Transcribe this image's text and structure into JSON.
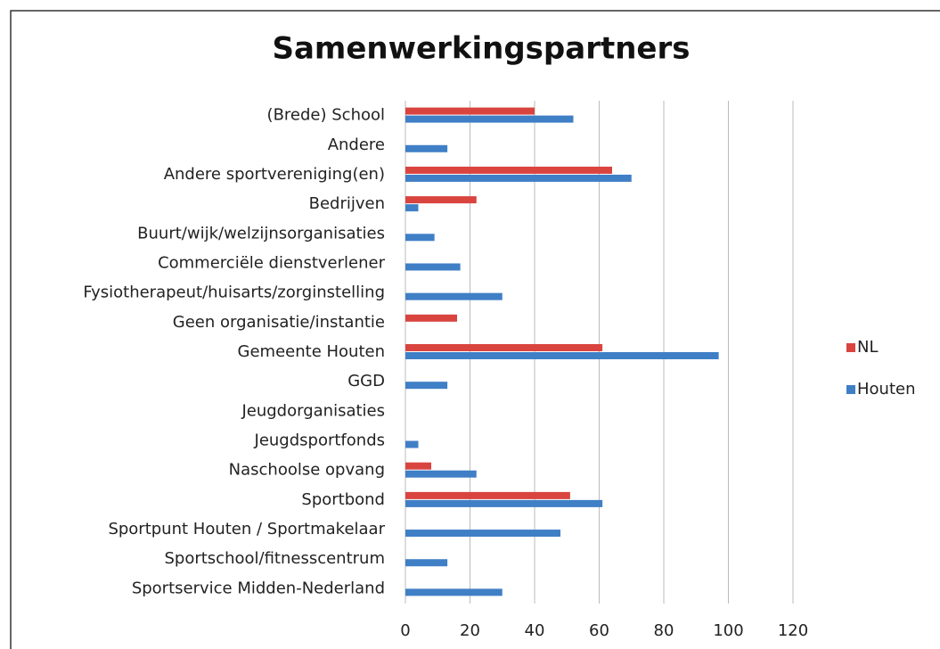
{
  "chart_data": {
    "type": "barh",
    "title": "Samenwerkingspartners",
    "categories": [
      "(Brede) School",
      "Andere",
      "Andere sportvereniging(en)",
      "Bedrijven",
      "Buurt/wijk/welzijnsorganisaties",
      "Commerciële dienstverlener",
      "Fysiotherapeut/huisarts/zorginstelling",
      "Geen organisatie/instantie",
      "Gemeente Houten",
      "GGD",
      "Jeugdorganisaties",
      "Jeugdsportfonds",
      "Naschoolse opvang",
      "Sportbond",
      "Sportpunt Houten / Sportmakelaar",
      "Sportschool/fitnesscentrum",
      "Sportservice Midden-Nederland"
    ],
    "series": [
      {
        "name": "NL",
        "color": "#d9443f",
        "values": [
          40,
          0,
          64,
          22,
          0,
          0,
          0,
          16,
          61,
          0,
          0,
          0,
          8,
          51,
          0,
          0,
          0
        ]
      },
      {
        "name": "Houten",
        "color": "#3f7fc6",
        "values": [
          52,
          13,
          70,
          4,
          9,
          17,
          30,
          0,
          97,
          13,
          0,
          4,
          22,
          61,
          48,
          13,
          30
        ]
      }
    ],
    "xlim": [
      0,
      120
    ],
    "xticks": [
      0,
      20,
      40,
      60,
      80,
      100,
      120
    ],
    "grid": true,
    "legend": "right"
  }
}
